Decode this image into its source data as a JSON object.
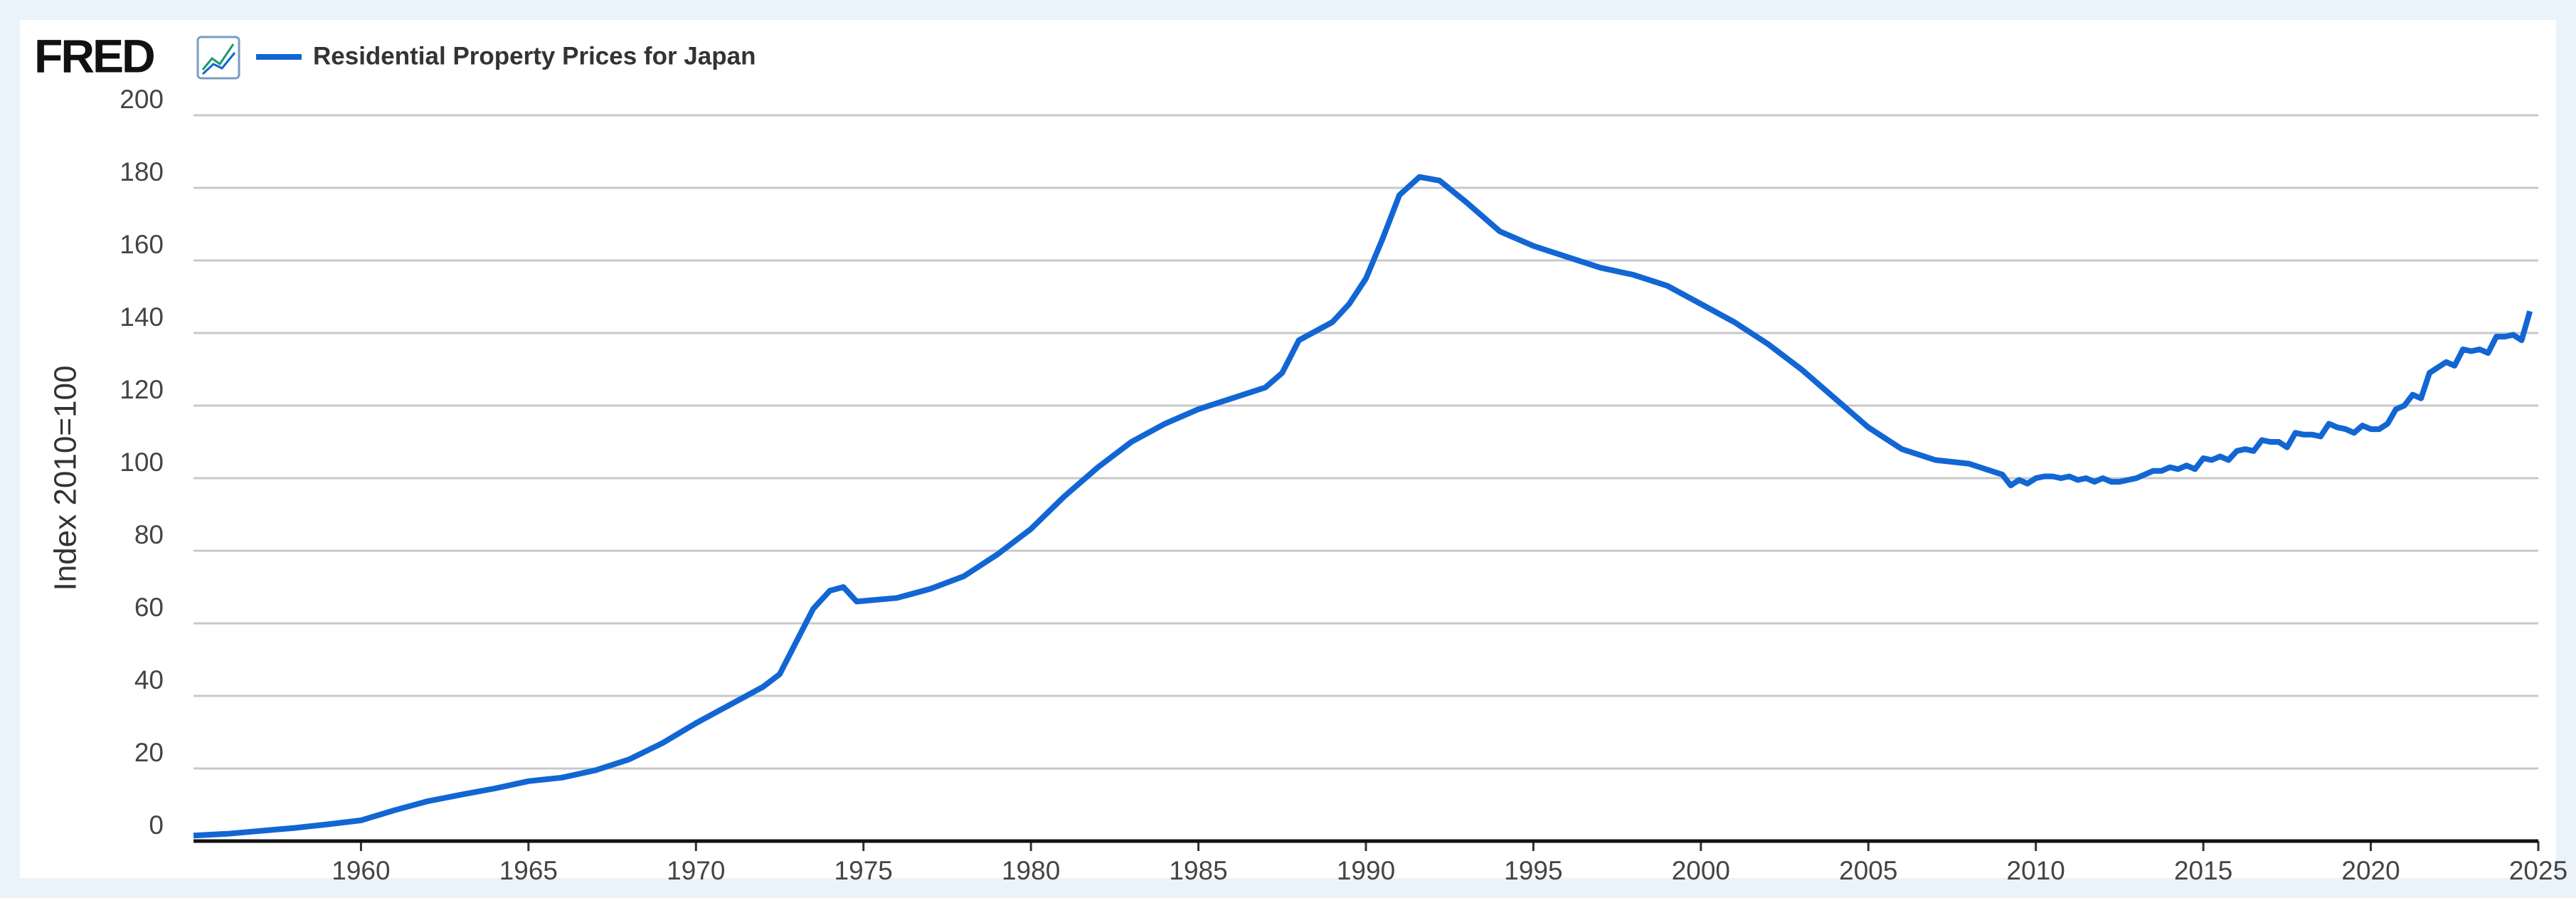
{
  "logo": "FRED",
  "chart_data": {
    "type": "line",
    "ylabel": "Index 2010=100",
    "x": [
      1955,
      1956,
      1957,
      1958,
      1959,
      1960,
      1961,
      1962,
      1963,
      1964,
      1965,
      1966,
      1967,
      1968,
      1969,
      1970,
      1971,
      1972,
      1972.5,
      1973,
      1973.5,
      1974,
      1974.4,
      1974.8,
      1976,
      1977,
      1978,
      1979,
      1980,
      1981,
      1982,
      1983,
      1984,
      1985,
      1986,
      1987,
      1987.5,
      1988,
      1989,
      1989.5,
      1990,
      1990.5,
      1991,
      1991.6,
      1992.2,
      1993,
      1994,
      1995,
      1996,
      1997,
      1998,
      1999,
      2000,
      2001,
      2002,
      2003,
      2004,
      2005,
      2006,
      2007,
      2008,
      2009,
      2009.25,
      2009.5,
      2009.75,
      2010,
      2010.25,
      2010.5,
      2010.75,
      2011,
      2011.25,
      2011.5,
      2011.75,
      2012,
      2012.25,
      2012.5,
      2012.75,
      2013,
      2013.25,
      2013.5,
      2013.75,
      2014,
      2014.25,
      2014.5,
      2014.75,
      2015,
      2015.25,
      2015.5,
      2015.75,
      2016,
      2016.25,
      2016.5,
      2016.75,
      2017,
      2017.25,
      2017.5,
      2017.75,
      2018,
      2018.25,
      2018.5,
      2018.75,
      2019,
      2019.25,
      2019.5,
      2019.75,
      2020,
      2020.25,
      2020.5,
      2020.75,
      2021,
      2021.25,
      2021.5,
      2021.75,
      2022,
      2022.25,
      2022.5,
      2022.75,
      2023,
      2023.25,
      2023.5,
      2023.75,
      2024,
      2024.25,
      2024.5,
      2024.75
    ],
    "series": [
      {
        "name": "Residential Property Prices for Japan",
        "color": "#1266d4",
        "values": [
          1.5,
          2,
          2.8,
          3.6,
          4.6,
          5.7,
          8.5,
          11,
          12.8,
          14.5,
          16.5,
          17.5,
          19.5,
          22.5,
          27,
          32.5,
          37.5,
          42.5,
          46,
          55,
          64,
          69,
          70,
          66,
          67,
          69.5,
          73,
          79,
          86,
          95,
          103,
          110,
          115,
          119,
          122,
          125,
          129,
          138,
          143,
          148,
          155,
          166,
          178,
          183,
          182,
          176,
          168,
          164,
          161,
          158,
          156,
          153,
          148,
          143,
          137,
          130,
          122,
          114,
          108,
          105,
          104,
          101,
          98,
          99.5,
          98.5,
          100,
          100.5,
          100.5,
          100,
          100.5,
          99.5,
          100,
          99,
          100,
          99,
          99,
          99.5,
          100,
          101,
          102,
          102,
          103,
          102.5,
          103.5,
          102.5,
          105.5,
          105,
          106,
          105,
          107.5,
          108,
          107.5,
          110.5,
          110,
          110,
          108.5,
          112.5,
          112,
          112,
          111.5,
          115,
          114,
          113.5,
          112.5,
          114.5,
          113.5,
          113.5,
          115,
          119,
          120,
          123,
          122,
          129,
          130.5,
          132,
          131,
          135.5,
          135,
          135.5,
          134.5,
          139,
          139,
          139.5,
          138,
          146
        ]
      }
    ],
    "xlim": [
      1955,
      2025
    ],
    "xticks": [
      1960,
      1965,
      1970,
      1975,
      1980,
      1985,
      1990,
      1995,
      2000,
      2005,
      2010,
      2015,
      2020,
      2025
    ],
    "ylim": [
      0,
      200
    ],
    "yticks": [
      0,
      20,
      40,
      60,
      80,
      100,
      120,
      140,
      160,
      180,
      200
    ],
    "grid": true
  }
}
